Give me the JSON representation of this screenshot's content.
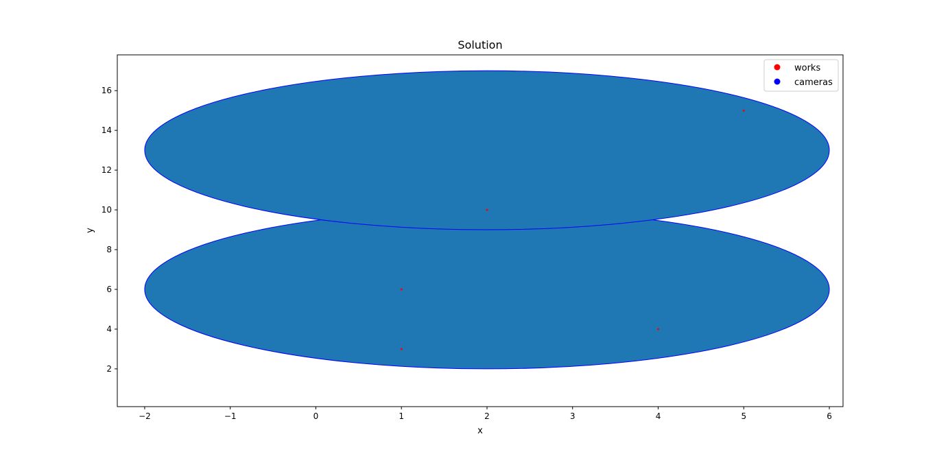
{
  "chart_data": {
    "type": "scatter",
    "title": "Solution",
    "xlabel": "x",
    "ylabel": "y",
    "xlim": [
      -2.32,
      6.16
    ],
    "ylim": [
      0.1,
      17.8
    ],
    "xticks": [
      {
        "value": -2,
        "label": "−2"
      },
      {
        "value": -1,
        "label": "−1"
      },
      {
        "value": 0,
        "label": "0"
      },
      {
        "value": 1,
        "label": "1"
      },
      {
        "value": 2,
        "label": "2"
      },
      {
        "value": 3,
        "label": "3"
      },
      {
        "value": 4,
        "label": "4"
      },
      {
        "value": 5,
        "label": "5"
      },
      {
        "value": 6,
        "label": "6"
      }
    ],
    "yticks": [
      {
        "value": 2,
        "label": "2"
      },
      {
        "value": 4,
        "label": "4"
      },
      {
        "value": 6,
        "label": "6"
      },
      {
        "value": 8,
        "label": "8"
      },
      {
        "value": 10,
        "label": "10"
      },
      {
        "value": 12,
        "label": "12"
      },
      {
        "value": 14,
        "label": "14"
      },
      {
        "value": 16,
        "label": "16"
      }
    ],
    "grid": false,
    "legend": {
      "placement": "top-right",
      "entries": [
        {
          "label": "works",
          "color": "#ff0000"
        },
        {
          "label": "cameras",
          "color": "#0000ff"
        }
      ]
    },
    "series": [
      {
        "name": "works",
        "color": "#ff0000",
        "points": [
          {
            "x": 1,
            "y": 3
          },
          {
            "x": 1,
            "y": 6
          },
          {
            "x": 2,
            "y": 10
          },
          {
            "x": 4,
            "y": 4
          },
          {
            "x": 5,
            "y": 15
          }
        ]
      },
      {
        "name": "cameras",
        "color": "#0000ff",
        "fill": "#1f77b4",
        "shapes": [
          {
            "cx": 2,
            "cy": 6,
            "rx": 4,
            "ry": 4
          },
          {
            "cx": 2,
            "cy": 13,
            "rx": 4,
            "ry": 4
          }
        ]
      }
    ]
  }
}
